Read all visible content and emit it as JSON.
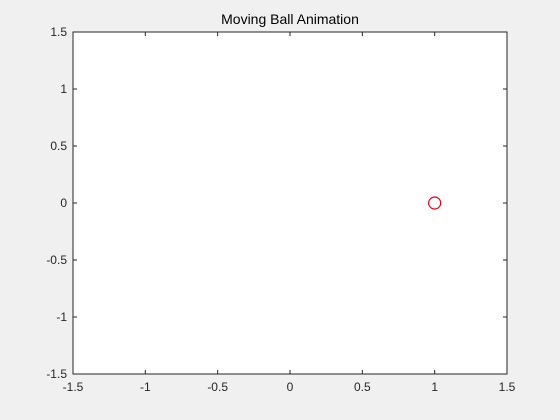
{
  "chart_data": {
    "type": "scatter",
    "title": "Moving Ball Animation",
    "xlabel": "",
    "ylabel": "",
    "xlim": [
      -1.5,
      1.5
    ],
    "ylim": [
      -1.5,
      1.5
    ],
    "x_ticks": [
      -1.5,
      -1,
      -0.5,
      0,
      0.5,
      1,
      1.5
    ],
    "y_ticks": [
      -1.5,
      -1,
      -0.5,
      0,
      0.5,
      1,
      1.5
    ],
    "x_tick_labels": [
      "-1.5",
      "-1",
      "-0.5",
      "0",
      "0.5",
      "1",
      "1.5"
    ],
    "y_tick_labels": [
      "-1.5",
      "-1",
      "-0.5",
      "0",
      "0.5",
      "1",
      "1.5"
    ],
    "grid": false,
    "legend": "none",
    "series": [
      {
        "marker": "circle",
        "color": "#e0000a",
        "points": [
          {
            "x": 1,
            "y": 0
          }
        ]
      }
    ]
  },
  "colors": {
    "figure_background": "#f0f0f0",
    "axes_background": "#ffffff",
    "axes_line": "#262626",
    "marker": "#e0000a"
  }
}
